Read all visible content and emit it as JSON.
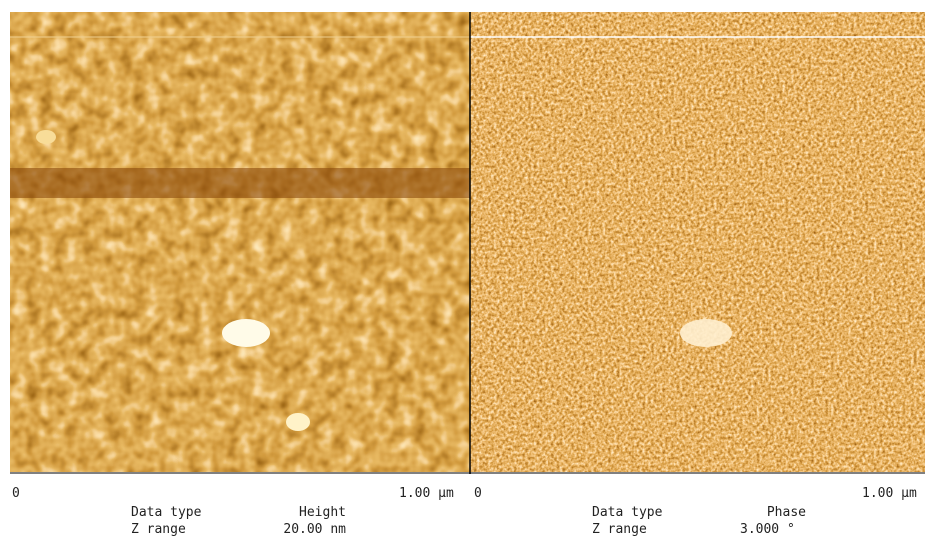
{
  "panels": [
    {
      "x_start": "0",
      "x_end": "1.00 µm",
      "data_type_label": "Data type",
      "data_type": "Height",
      "z_range_label": "Z range",
      "z_range": "20.00 nm"
    },
    {
      "x_start": "0",
      "x_end": "1.00 µm",
      "data_type_label": "Data type",
      "data_type": "Phase",
      "z_range_label": "Z range",
      "z_range": "3.000 °"
    }
  ]
}
